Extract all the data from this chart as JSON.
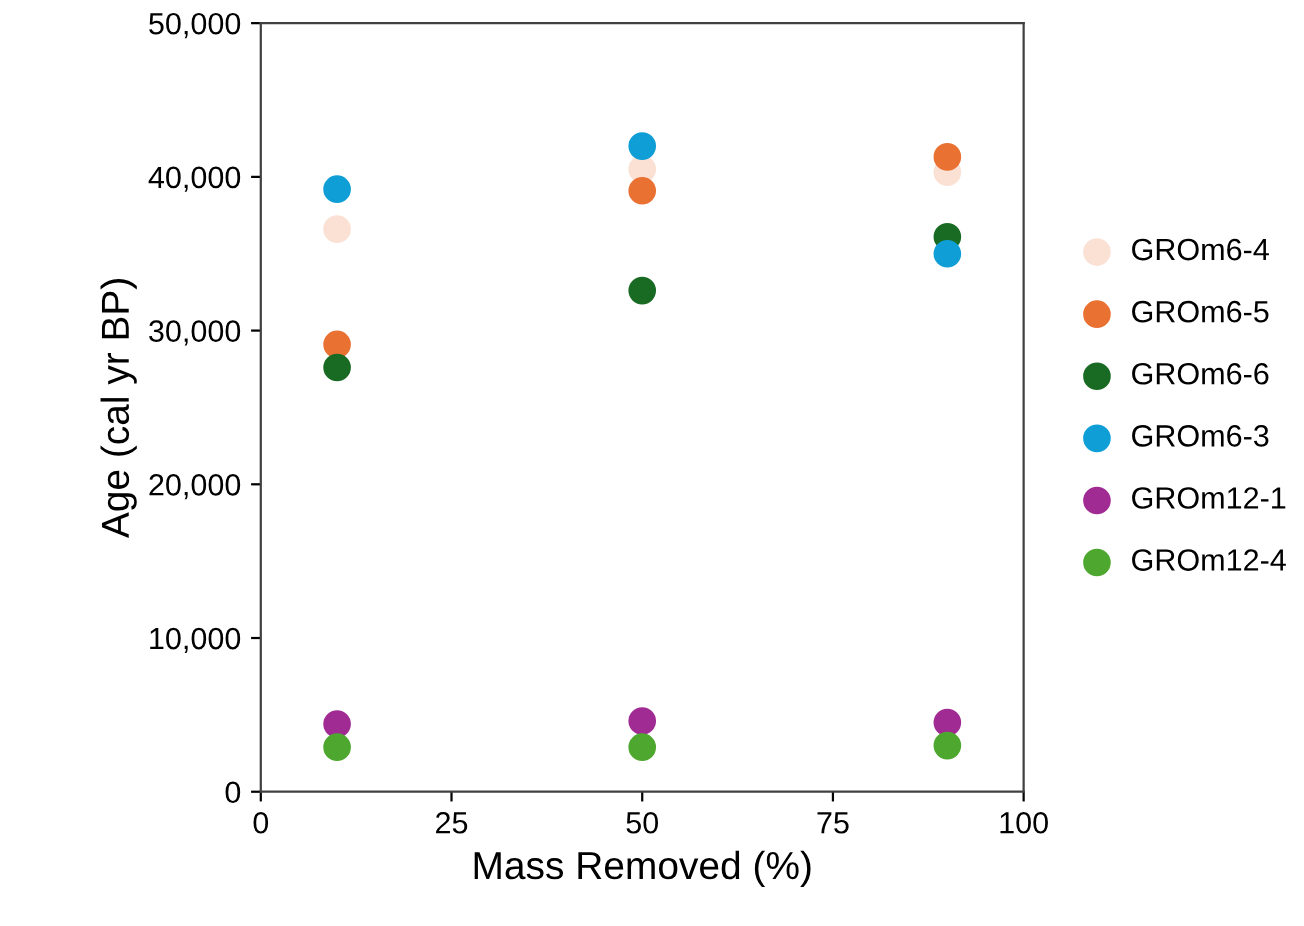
{
  "chart_data": {
    "type": "scatter",
    "xlabel": "Mass Removed (%)",
    "ylabel": "Age (cal yr BP)",
    "xlim": [
      0,
      100
    ],
    "xticks": [
      0,
      25,
      50,
      75,
      100
    ],
    "ylim": [
      0,
      50000
    ],
    "yticks": [
      {
        "value": 0,
        "label": "0"
      },
      {
        "value": 10000,
        "label": "10,000"
      },
      {
        "value": 20000,
        "label": "20,000"
      },
      {
        "value": 30000,
        "label": "30,000"
      },
      {
        "value": 40000,
        "label": "40,000"
      },
      {
        "value": 50000,
        "label": "50,000"
      }
    ],
    "x": [
      10,
      50,
      90
    ],
    "marker": "circle",
    "grid": false,
    "legend": "right",
    "series": [
      {
        "name": "GROm6-4",
        "color": "#fbe0d4",
        "values": [
          36600,
          40500,
          40300
        ]
      },
      {
        "name": "GROm6-5",
        "color": "#e97132",
        "values": [
          29100,
          39100,
          41300
        ]
      },
      {
        "name": "GROm6-6",
        "color": "#196b24",
        "values": [
          27600,
          32600,
          36100
        ]
      },
      {
        "name": "GROm6-3",
        "color": "#0f9ed5",
        "values": [
          39200,
          42000,
          35000
        ]
      },
      {
        "name": "GROm12-1",
        "color": "#a02b93",
        "values": [
          4400,
          4600,
          4500
        ]
      },
      {
        "name": "GROm12-4",
        "color": "#4ea72e",
        "values": [
          2900,
          2900,
          3000
        ]
      }
    ]
  }
}
